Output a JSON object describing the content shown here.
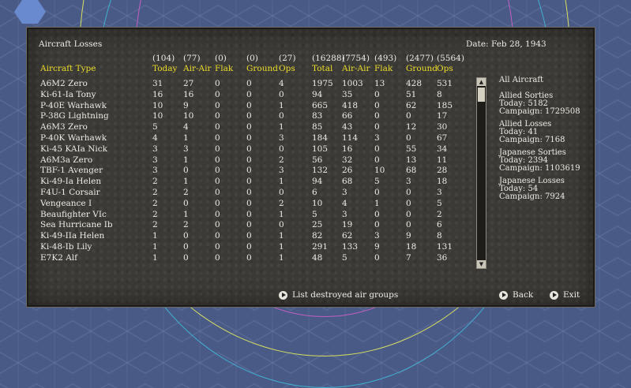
{
  "window": {
    "title": "Aircraft Losses",
    "date": "Date: Feb 28, 1943"
  },
  "columns": [
    {
      "total": "",
      "label": "Aircraft Type"
    },
    {
      "total": "(104)",
      "label": "Today"
    },
    {
      "total": "(77)",
      "label": "Air-Air"
    },
    {
      "total": "(0)",
      "label": "Flak"
    },
    {
      "total": "(0)",
      "label": "Ground"
    },
    {
      "total": "(27)",
      "label": "Ops"
    },
    {
      "total": "(16288)",
      "label": "Total"
    },
    {
      "total": "(7754)",
      "label": "Air-Air"
    },
    {
      "total": "(493)",
      "label": "Flak"
    },
    {
      "total": "(2477)",
      "label": "Ground"
    },
    {
      "total": "(5564)",
      "label": "Ops"
    }
  ],
  "rows": [
    [
      "A6M2 Zero",
      "31",
      "27",
      "0",
      "0",
      "4",
      "1975",
      "1003",
      "13",
      "428",
      "531"
    ],
    [
      "Ki-61-Ia Tony",
      "16",
      "16",
      "0",
      "0",
      "0",
      "94",
      "35",
      "0",
      "51",
      "8"
    ],
    [
      "P-40E Warhawk",
      "10",
      "9",
      "0",
      "0",
      "1",
      "665",
      "418",
      "0",
      "62",
      "185"
    ],
    [
      "P-38G Lightning",
      "10",
      "10",
      "0",
      "0",
      "0",
      "83",
      "66",
      "0",
      "0",
      "17"
    ],
    [
      "A6M3 Zero",
      "5",
      "4",
      "0",
      "0",
      "1",
      "85",
      "43",
      "0",
      "12",
      "30"
    ],
    [
      "P-40K Warhawk",
      "4",
      "1",
      "0",
      "0",
      "3",
      "184",
      "114",
      "3",
      "0",
      "67"
    ],
    [
      "Ki-45 KAIa Nick",
      "3",
      "3",
      "0",
      "0",
      "0",
      "105",
      "16",
      "0",
      "55",
      "34"
    ],
    [
      "A6M3a Zero",
      "3",
      "1",
      "0",
      "0",
      "2",
      "56",
      "32",
      "0",
      "13",
      "11"
    ],
    [
      "TBF-1 Avenger",
      "3",
      "0",
      "0",
      "0",
      "3",
      "132",
      "26",
      "10",
      "68",
      "28"
    ],
    [
      "Ki-49-Ia Helen",
      "2",
      "1",
      "0",
      "0",
      "1",
      "94",
      "68",
      "5",
      "3",
      "18"
    ],
    [
      "F4U-1 Corsair",
      "2",
      "2",
      "0",
      "0",
      "0",
      "6",
      "3",
      "0",
      "0",
      "3"
    ],
    [
      "Vengeance I",
      "2",
      "0",
      "0",
      "0",
      "2",
      "10",
      "4",
      "1",
      "0",
      "5"
    ],
    [
      "Beaufighter VIc",
      "2",
      "1",
      "0",
      "0",
      "1",
      "5",
      "3",
      "0",
      "0",
      "2"
    ],
    [
      "Sea Hurricane Ib",
      "2",
      "2",
      "0",
      "0",
      "0",
      "25",
      "19",
      "0",
      "0",
      "6"
    ],
    [
      "Ki-49-IIa Helen",
      "1",
      "0",
      "0",
      "0",
      "1",
      "82",
      "62",
      "3",
      "9",
      "8"
    ],
    [
      "Ki-48-Ib Lily",
      "1",
      "0",
      "0",
      "0",
      "1",
      "291",
      "133",
      "9",
      "18",
      "131"
    ],
    [
      "E7K2 Alf",
      "1",
      "0",
      "0",
      "0",
      "1",
      "48",
      "5",
      "0",
      "7",
      "36"
    ]
  ],
  "summary": {
    "heading": "All Aircraft",
    "allied_sorties": {
      "title": "Allied Sorties",
      "today": "Today:   5182",
      "campaign": "Campaign: 1729508"
    },
    "allied_losses": {
      "title": "Allied Losses",
      "today": "Today:   41",
      "campaign": "Campaign: 7168"
    },
    "japanese_sorties": {
      "title": "Japanese Sorties",
      "today": "Today:   2394",
      "campaign": "Campaign: 1103619"
    },
    "japanese_losses": {
      "title": "Japanese Losses",
      "today": "Today:   54",
      "campaign": "Campaign: 7924"
    }
  },
  "buttons": {
    "list_destroyed": "List destroyed air groups",
    "back": "Back",
    "exit": "Exit"
  },
  "scrollbar": {
    "up": "▲",
    "down": "▼"
  },
  "colors": {
    "accent": "#ecdc2a",
    "text": "#ecebe4",
    "panel": "#3b3a36"
  }
}
